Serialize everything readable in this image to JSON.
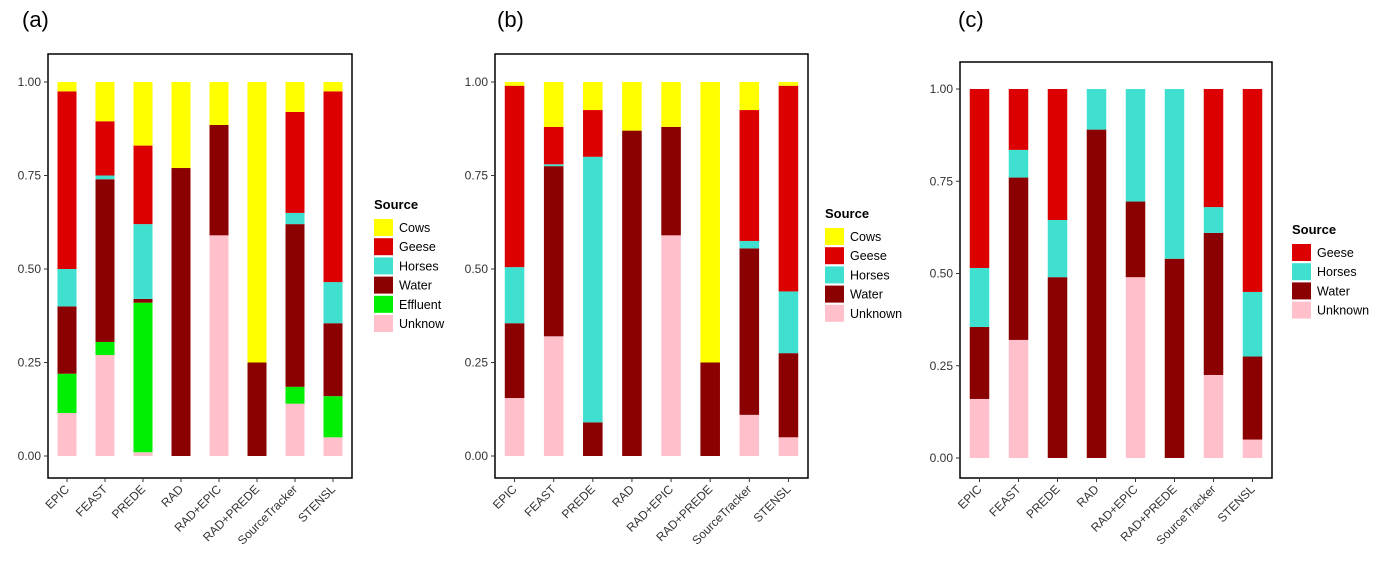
{
  "chart_data": [
    {
      "panel": "(a)",
      "type": "bar",
      "stacked": true,
      "categories": [
        "EPIC",
        "FEAST",
        "PREDE",
        "RAD",
        "RAD+EPIC",
        "RAD+PREDE",
        "SourceTracker",
        "STENSL"
      ],
      "ylim": [
        0,
        1
      ],
      "yticks": [
        "0.00",
        "0.25",
        "0.50",
        "0.75",
        "1.00"
      ],
      "legend_title": "Source",
      "series": [
        {
          "name": "Unknow",
          "color": "#FFC0CB",
          "values": [
            0.115,
            0.27,
            0.01,
            0.0,
            0.59,
            0.0,
            0.14,
            0.05
          ]
        },
        {
          "name": "Effluent",
          "color": "#00EE00",
          "values": [
            0.105,
            0.035,
            0.4,
            0.0,
            0.0,
            0.0,
            0.045,
            0.11
          ]
        },
        {
          "name": "Water",
          "color": "#8B0000",
          "values": [
            0.18,
            0.435,
            0.01,
            0.77,
            0.295,
            0.25,
            0.435,
            0.195
          ]
        },
        {
          "name": "Horses",
          "color": "#40E0D0",
          "values": [
            0.1,
            0.01,
            0.2,
            0.0,
            0.0,
            0.0,
            0.03,
            0.11
          ]
        },
        {
          "name": "Geese",
          "color": "#DD0000",
          "values": [
            0.475,
            0.145,
            0.21,
            0.0,
            0.0,
            0.0,
            0.27,
            0.51
          ]
        },
        {
          "name": "Cows",
          "color": "#FFFF00",
          "values": [
            0.025,
            0.105,
            0.17,
            0.23,
            0.115,
            0.75,
            0.08,
            0.025
          ]
        }
      ],
      "legend_order": [
        "Cows",
        "Geese",
        "Horses",
        "Water",
        "Effluent",
        "Unknow"
      ]
    },
    {
      "panel": "(b)",
      "type": "bar",
      "stacked": true,
      "categories": [
        "EPIC",
        "FEAST",
        "PREDE",
        "RAD",
        "RAD+EPIC",
        "RAD+PREDE",
        "SourceTracker",
        "STENSL"
      ],
      "ylim": [
        0,
        1
      ],
      "yticks": [
        "0.00",
        "0.25",
        "0.50",
        "0.75",
        "1.00"
      ],
      "legend_title": "Source",
      "series": [
        {
          "name": "Unknown",
          "color": "#FFC0CB",
          "values": [
            0.155,
            0.32,
            0.0,
            0.0,
            0.59,
            0.0,
            0.11,
            0.05
          ]
        },
        {
          "name": "Water",
          "color": "#8B0000",
          "values": [
            0.2,
            0.455,
            0.09,
            0.87,
            0.29,
            0.25,
            0.445,
            0.225
          ]
        },
        {
          "name": "Horses",
          "color": "#40E0D0",
          "values": [
            0.15,
            0.005,
            0.71,
            0.0,
            0.0,
            0.0,
            0.02,
            0.165
          ]
        },
        {
          "name": "Geese",
          "color": "#DD0000",
          "values": [
            0.485,
            0.1,
            0.125,
            0.0,
            0.0,
            0.0,
            0.35,
            0.55
          ]
        },
        {
          "name": "Cows",
          "color": "#FFFF00",
          "values": [
            0.01,
            0.12,
            0.075,
            0.13,
            0.12,
            0.75,
            0.075,
            0.01
          ]
        }
      ],
      "legend_order": [
        "Cows",
        "Geese",
        "Horses",
        "Water",
        "Unknown"
      ]
    },
    {
      "panel": "(c)",
      "type": "bar",
      "stacked": true,
      "categories": [
        "EPIC",
        "FEAST",
        "PREDE",
        "RAD",
        "RAD+EPIC",
        "RAD+PREDE",
        "SourceTracker",
        "STENSL"
      ],
      "ylim": [
        0,
        1
      ],
      "yticks": [
        "0.00",
        "0.25",
        "0.50",
        "0.75",
        "1.00"
      ],
      "legend_title": "Source",
      "series": [
        {
          "name": "Unknown",
          "color": "#FFC0CB",
          "values": [
            0.16,
            0.32,
            0.0,
            0.0,
            0.49,
            0.0,
            0.225,
            0.05
          ]
        },
        {
          "name": "Water",
          "color": "#8B0000",
          "values": [
            0.195,
            0.44,
            0.49,
            0.89,
            0.205,
            0.54,
            0.385,
            0.225
          ]
        },
        {
          "name": "Horses",
          "color": "#40E0D0",
          "values": [
            0.16,
            0.075,
            0.155,
            0.11,
            0.305,
            0.46,
            0.07,
            0.175
          ]
        },
        {
          "name": "Geese",
          "color": "#DD0000",
          "values": [
            0.485,
            0.165,
            0.355,
            0.0,
            0.0,
            0.0,
            0.32,
            0.55
          ]
        }
      ],
      "legend_order": [
        "Geese",
        "Horses",
        "Water",
        "Unknown"
      ]
    }
  ]
}
